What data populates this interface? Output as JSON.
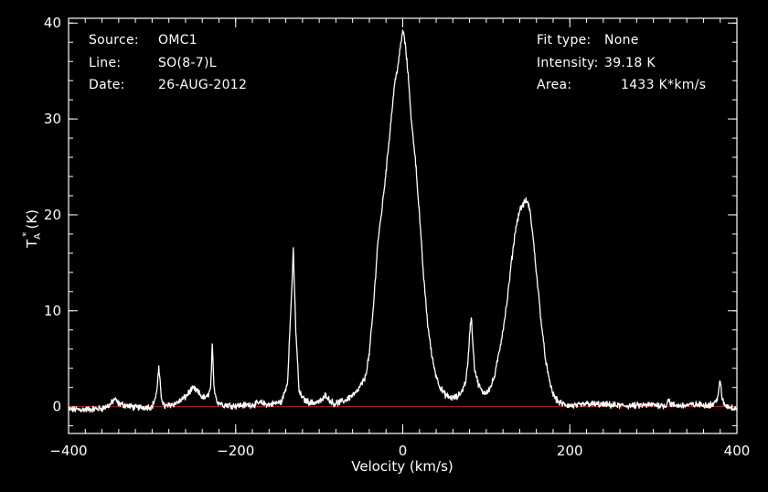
{
  "header": {
    "left": [
      {
        "label": "Source:",
        "value": "OMC1"
      },
      {
        "label": "Line:",
        "value": "SO(8-7)L"
      },
      {
        "label": "Date:",
        "value": "26-AUG-2012"
      }
    ],
    "right": [
      {
        "label": "Fit type:",
        "value": "None"
      },
      {
        "label": "Intensity:",
        "value": "39.18 K"
      },
      {
        "label": "Area:",
        "value": "1433 K*km/s"
      }
    ]
  },
  "chart_data": {
    "type": "line",
    "xlabel": "Velocity (km/s)",
    "ylabel_main": "T",
    "ylabel_sub": "A",
    "ylabel_sup": "*",
    "ylabel_unit": "(K)",
    "xlim": [
      -400,
      400
    ],
    "ylim": [
      -2.8,
      40.5
    ],
    "x_ticks": [
      -400,
      -200,
      0,
      200,
      400
    ],
    "y_ticks": [
      0,
      10,
      20,
      30,
      40
    ],
    "x_minor_step": 20,
    "y_minor_step": 2,
    "grid": false,
    "legend": "none",
    "colors": {
      "background": "#000000",
      "axes": "#ffffff",
      "spectrum": "#ffffff",
      "baseline": "#ff0000"
    },
    "baseline_value": 0,
    "series": [
      {
        "x": [
          -400,
          -380,
          -360,
          -350,
          -345,
          -340,
          -320,
          -300,
          -295,
          -292,
          -289,
          -285,
          -270,
          -260,
          -255,
          -250,
          -245,
          -240,
          -235,
          -230,
          -228,
          -226,
          -222,
          -215,
          -200,
          -180,
          -170,
          -160,
          -145,
          -138,
          -134,
          -131,
          -128,
          -124,
          -118,
          -110,
          -100,
          -95,
          -92,
          -88,
          -82,
          -70,
          -55,
          -45,
          -40,
          -35,
          -30,
          -25,
          -20,
          -15,
          -10,
          -5,
          -2,
          0,
          2,
          5,
          8,
          10,
          15,
          20,
          25,
          30,
          35,
          40,
          45,
          50,
          55,
          60,
          65,
          70,
          75,
          78,
          80,
          82,
          84,
          86,
          90,
          95,
          100,
          105,
          110,
          115,
          120,
          125,
          130,
          135,
          140,
          145,
          148,
          150,
          152,
          155,
          160,
          165,
          170,
          175,
          180,
          185,
          190,
          195,
          200,
          210,
          220,
          240,
          260,
          280,
          300,
          315,
          318,
          321,
          330,
          350,
          370,
          375,
          378,
          380,
          382,
          385,
          390,
          400
        ],
        "y": [
          -0.3,
          -0.3,
          -0.2,
          0.2,
          0.8,
          0.3,
          -0.1,
          0.0,
          1.2,
          4.0,
          1.0,
          0.0,
          0.4,
          1.0,
          1.6,
          1.9,
          1.5,
          1.0,
          0.9,
          1.8,
          6.4,
          2.0,
          0.5,
          0.2,
          0.1,
          0.2,
          0.4,
          0.2,
          0.5,
          2.5,
          10.0,
          16.2,
          8.0,
          1.5,
          0.7,
          0.4,
          0.5,
          0.8,
          1.3,
          0.7,
          0.3,
          0.6,
          1.5,
          3.0,
          5.5,
          10.5,
          17.0,
          20.5,
          24.5,
          29.0,
          33.5,
          36.0,
          38.0,
          39.2,
          38.5,
          36.0,
          33.0,
          30.0,
          26.0,
          20.0,
          13.5,
          8.5,
          5.2,
          3.2,
          2.0,
          1.3,
          1.0,
          0.9,
          1.0,
          1.5,
          2.5,
          4.5,
          7.5,
          9.5,
          6.5,
          4.0,
          2.5,
          1.5,
          1.5,
          2.0,
          3.2,
          5.5,
          8.0,
          11.0,
          15.0,
          18.5,
          20.5,
          21.2,
          21.5,
          21.2,
          20.5,
          18.5,
          14.0,
          9.5,
          5.5,
          2.8,
          1.3,
          0.6,
          0.3,
          0.2,
          0.1,
          0.1,
          0.3,
          0.2,
          0.1,
          0.1,
          0.2,
          0.1,
          0.8,
          0.2,
          0.1,
          0.2,
          0.2,
          0.5,
          1.5,
          2.7,
          1.0,
          0.2,
          0.0,
          -0.2
        ]
      }
    ]
  }
}
